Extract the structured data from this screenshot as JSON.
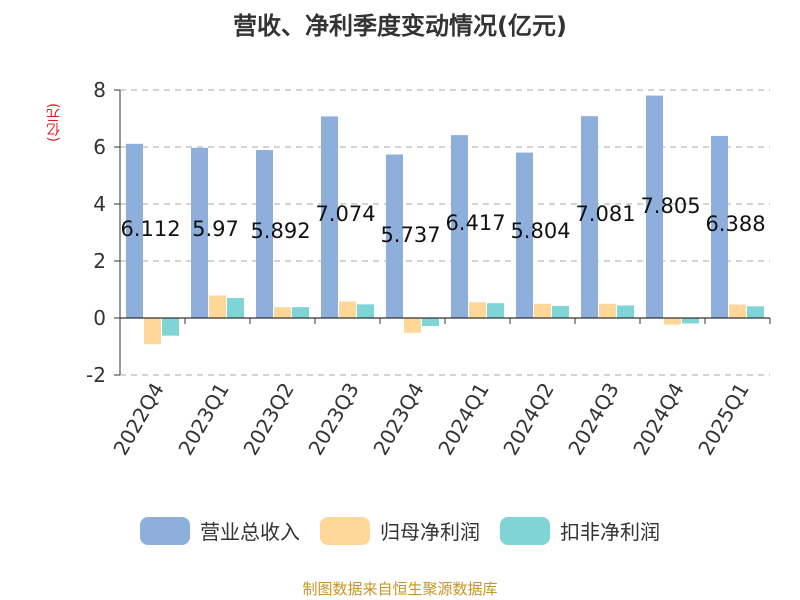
{
  "chart_data": {
    "type": "bar",
    "title": "营收、净利季度变动情况(亿元)",
    "unit_label": "(亿元)",
    "categories": [
      "2022Q4",
      "2023Q1",
      "2023Q2",
      "2023Q3",
      "2023Q4",
      "2024Q1",
      "2024Q2",
      "2024Q3",
      "2024Q4",
      "2025Q1"
    ],
    "series": [
      {
        "name": "营业总收入",
        "color": "#8eaedb",
        "values": [
          6.112,
          5.97,
          5.892,
          7.074,
          5.737,
          6.417,
          5.804,
          7.081,
          7.805,
          6.388
        ],
        "labels": [
          "6.112",
          "5.97",
          "5.892",
          "7.074",
          "5.737",
          "6.417",
          "5.804",
          "7.081",
          "7.805",
          "6.388"
        ]
      },
      {
        "name": "归母净利润",
        "color": "#ffd799",
        "values": [
          -0.92,
          0.79,
          0.38,
          0.58,
          -0.52,
          0.55,
          0.5,
          0.5,
          -0.23,
          0.47
        ]
      },
      {
        "name": "扣非净利润",
        "color": "#7fd4d6",
        "values": [
          -0.62,
          0.7,
          0.38,
          0.48,
          -0.28,
          0.52,
          0.42,
          0.44,
          -0.19,
          0.41
        ]
      }
    ],
    "ylim": [
      -2,
      8
    ],
    "yticks": [
      "-2",
      "0",
      "2",
      "4",
      "6",
      "8"
    ],
    "grid": true,
    "legend_position": "bottom"
  },
  "source": "制图数据来自恒生聚源数据库"
}
